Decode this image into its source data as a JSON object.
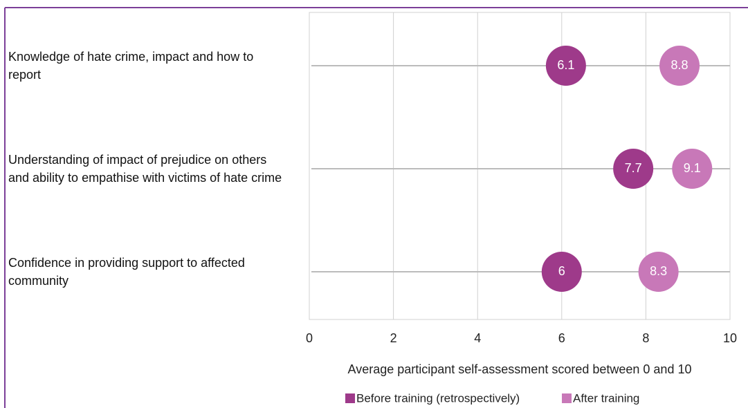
{
  "chart_data": {
    "type": "dot",
    "categories": [
      "Knowledge of hate crime, impact and how to report",
      "Understanding of impact of prejudice on others and ability to empathise with victims of hate crime",
      "Confidence in providing support to affected community"
    ],
    "series": [
      {
        "name": "Before training (retrospectively)",
        "color": "#9e3a8a",
        "values": [
          6.1,
          7.7,
          6
        ]
      },
      {
        "name": "After training",
        "color": "#c878b8",
        "values": [
          8.8,
          9.1,
          8.3
        ]
      }
    ],
    "xlabel": "Average participant self-assessment scored between 0 and 10",
    "xlim": [
      0,
      10
    ],
    "xticks": [
      0,
      2,
      4,
      6,
      8,
      10
    ],
    "grid": true
  }
}
